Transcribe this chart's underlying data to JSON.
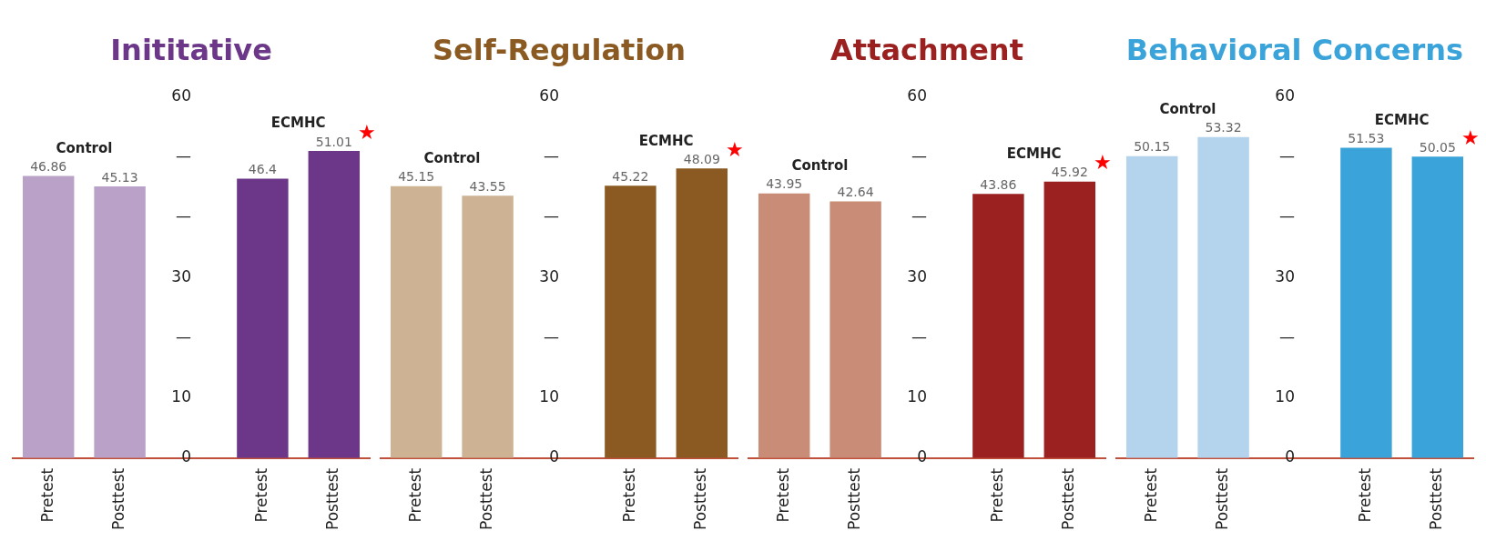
{
  "chart_data": [
    {
      "type": "bar",
      "title": "Inititative",
      "categories": [
        "Pretest",
        "Posttest",
        null,
        "Pretest",
        "Posttest"
      ],
      "series": [
        {
          "name": "Control",
          "color": "#b9a1c7",
          "values": [
            46.86,
            45.13,
            null,
            null,
            null
          ]
        },
        {
          "name": "ECMHC",
          "color": "#6c3789",
          "values": [
            null,
            null,
            null,
            46.4,
            51.01
          ]
        }
      ],
      "ylim": [
        0,
        60
      ],
      "yticks": [
        0,
        10,
        {
          "value": 20,
          "label": "—"
        },
        30,
        {
          "value": 40,
          "label": "—"
        },
        {
          "value": 50,
          "label": "—"
        },
        60
      ],
      "grid": false,
      "data_labels": true,
      "annotations": [
        "★"
      ]
    },
    {
      "type": "bar",
      "title": "Self-Regulation",
      "categories": [
        "Pretest",
        "Posttest",
        null,
        "Pretest",
        "Posttest"
      ],
      "series": [
        {
          "name": "Control",
          "color": "#cdb393",
          "values": [
            45.15,
            43.55,
            null,
            null,
            null
          ]
        },
        {
          "name": "ECMHC",
          "color": "#8a5a22",
          "values": [
            null,
            null,
            null,
            45.22,
            48.09
          ]
        }
      ],
      "ylim": [
        0,
        60
      ],
      "yticks": [
        0,
        10,
        {
          "value": 20,
          "label": "—"
        },
        30,
        {
          "value": 40,
          "label": "—"
        },
        {
          "value": 50,
          "label": "—"
        },
        60
      ],
      "grid": false,
      "data_labels": true,
      "annotations": [
        "★"
      ]
    },
    {
      "type": "bar",
      "title": "Attachment",
      "categories": [
        "Pretest",
        "Posttest",
        null,
        "Pretest",
        "Posttest"
      ],
      "series": [
        {
          "name": "Control",
          "color": "#c98c77",
          "values": [
            43.95,
            42.64,
            null,
            null,
            null
          ]
        },
        {
          "name": "ECMHC",
          "color": "#9b2020",
          "values": [
            null,
            null,
            null,
            43.86,
            45.92
          ]
        }
      ],
      "ylim": [
        0,
        60
      ],
      "yticks": [
        0,
        10,
        {
          "value": 20,
          "label": "—"
        },
        30,
        {
          "value": 40,
          "label": "—"
        },
        {
          "value": 50,
          "label": "—"
        },
        60
      ],
      "grid": false,
      "data_labels": true,
      "annotations": [
        "★"
      ]
    },
    {
      "type": "bar",
      "title": "Behavioral Concerns",
      "categories": [
        "Pretest",
        "Posttest",
        null,
        "Pretest",
        "Posttest"
      ],
      "series": [
        {
          "name": "Control",
          "color": "#b4d3ec",
          "values": [
            50.15,
            53.32,
            null,
            null,
            null
          ]
        },
        {
          "name": "ECMHC",
          "color": "#3aa3d9",
          "values": [
            null,
            null,
            null,
            51.53,
            50.05
          ]
        }
      ],
      "ylim": [
        0,
        60
      ],
      "yticks": [
        0,
        10,
        {
          "value": 20,
          "label": "—"
        },
        30,
        {
          "value": 40,
          "label": "—"
        },
        {
          "value": 50,
          "label": "—"
        },
        60
      ],
      "grid": false,
      "data_labels": true,
      "annotations": [
        "★"
      ]
    }
  ]
}
